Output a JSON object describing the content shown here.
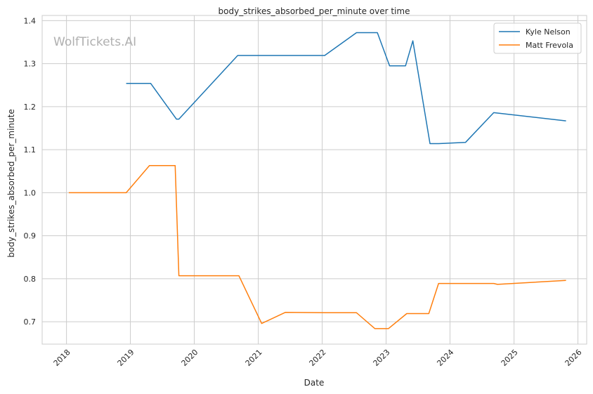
{
  "chart_data": {
    "type": "line",
    "title": "body_strikes_absorbed_per_minute over time",
    "xlabel": "Date",
    "ylabel": "body_strikes_absorbed_per_minute",
    "watermark": "WolfTickets.AI",
    "xlim": [
      "2017-08-15",
      "2026-02-20"
    ],
    "ylim": [
      0.648,
      1.412
    ],
    "x_ticks": [
      "2018",
      "2019",
      "2020",
      "2021",
      "2022",
      "2023",
      "2024",
      "2025",
      "2026"
    ],
    "y_ticks": [
      "0.7",
      "0.8",
      "0.9",
      "1.0",
      "1.1",
      "1.2",
      "1.3",
      "1.4"
    ],
    "grid": true,
    "legend_position": "top-right",
    "series": [
      {
        "name": "Kyle Nelson",
        "color": "#1f77b4",
        "points": [
          {
            "x": "2018-12-08",
            "y": 1.254
          },
          {
            "x": "2019-04-27",
            "y": 1.254
          },
          {
            "x": "2019-09-21",
            "y": 1.171
          },
          {
            "x": "2019-10-05",
            "y": 1.171
          },
          {
            "x": "2020-09-05",
            "y": 1.319
          },
          {
            "x": "2022-01-15",
            "y": 1.319
          },
          {
            "x": "2022-07-16",
            "y": 1.372
          },
          {
            "x": "2022-11-12",
            "y": 1.372
          },
          {
            "x": "2023-01-21",
            "y": 1.295
          },
          {
            "x": "2023-04-22",
            "y": 1.295
          },
          {
            "x": "2023-06-03",
            "y": 1.353
          },
          {
            "x": "2023-09-09",
            "y": 1.114
          },
          {
            "x": "2023-10-28",
            "y": 1.114
          },
          {
            "x": "2024-03-30",
            "y": 1.117
          },
          {
            "x": "2024-09-07",
            "y": 1.186
          },
          {
            "x": "2025-10-25",
            "y": 1.167
          }
        ]
      },
      {
        "name": "Matt Frevola",
        "color": "#ff7f0e",
        "points": [
          {
            "x": "2018-01-14",
            "y": 1.0
          },
          {
            "x": "2018-12-08",
            "y": 1.0
          },
          {
            "x": "2019-04-20",
            "y": 1.063
          },
          {
            "x": "2019-09-14",
            "y": 1.063
          },
          {
            "x": "2019-10-05",
            "y": 0.807
          },
          {
            "x": "2020-09-12",
            "y": 0.807
          },
          {
            "x": "2021-01-20",
            "y": 0.696
          },
          {
            "x": "2021-06-05",
            "y": 0.722
          },
          {
            "x": "2022-01-22",
            "y": 0.721
          },
          {
            "x": "2022-07-16",
            "y": 0.721
          },
          {
            "x": "2022-10-29",
            "y": 0.684
          },
          {
            "x": "2023-01-14",
            "y": 0.684
          },
          {
            "x": "2023-04-29",
            "y": 0.719
          },
          {
            "x": "2023-09-02",
            "y": 0.719
          },
          {
            "x": "2023-10-28",
            "y": 0.789
          },
          {
            "x": "2024-09-07",
            "y": 0.789
          },
          {
            "x": "2024-09-28",
            "y": 0.787
          },
          {
            "x": "2025-10-25",
            "y": 0.796
          }
        ]
      }
    ]
  }
}
